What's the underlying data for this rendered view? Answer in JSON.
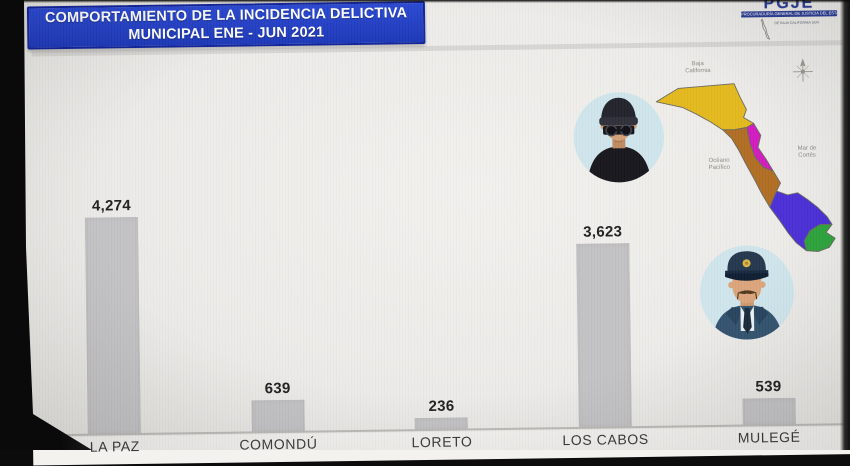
{
  "slide": {
    "banner": {
      "line1": "COMPORTAMIENTO DE LA INCIDENCIA DELICTIVA",
      "line2": "MUNICIPAL ENE - JUN 2021"
    },
    "logo": {
      "acronym": "PGJE",
      "ribbon": "PROCURADURÍA GENERAL DE JUSTICIA DEL ESTADO",
      "sub": "DE BAJA CALIFORNIA SUR"
    }
  },
  "chart_data": {
    "type": "bar",
    "title": "COMPORTAMIENTO DE LA INCIDENCIA DELICTIVA MUNICIPAL ENE - JUN 2021",
    "categories": [
      "LA PAZ",
      "COMONDÚ",
      "LORETO",
      "LOS CABOS",
      "MULEGÉ"
    ],
    "values": [
      4274,
      639,
      236,
      3623,
      539
    ],
    "value_labels": [
      "4,274",
      "639",
      "236",
      "3,623",
      "539"
    ],
    "xlabel": "",
    "ylabel": "",
    "ylim": [
      0,
      4400
    ],
    "grid": false,
    "legend_position": "none",
    "bar_color": "#c3c2c4",
    "axis_color": "#bcbbb7"
  },
  "map": {
    "labels": {
      "north1": "Baja",
      "north2": "California",
      "west1": "Océano",
      "west2": "Pacífico",
      "east1": "Mar de",
      "east2": "Cortés"
    },
    "region_colors": [
      "#e3b91e",
      "#b06e23",
      "#d11cbe",
      "#4b2fd6",
      "#2da33c"
    ],
    "outline_color": "#6a6a60"
  }
}
